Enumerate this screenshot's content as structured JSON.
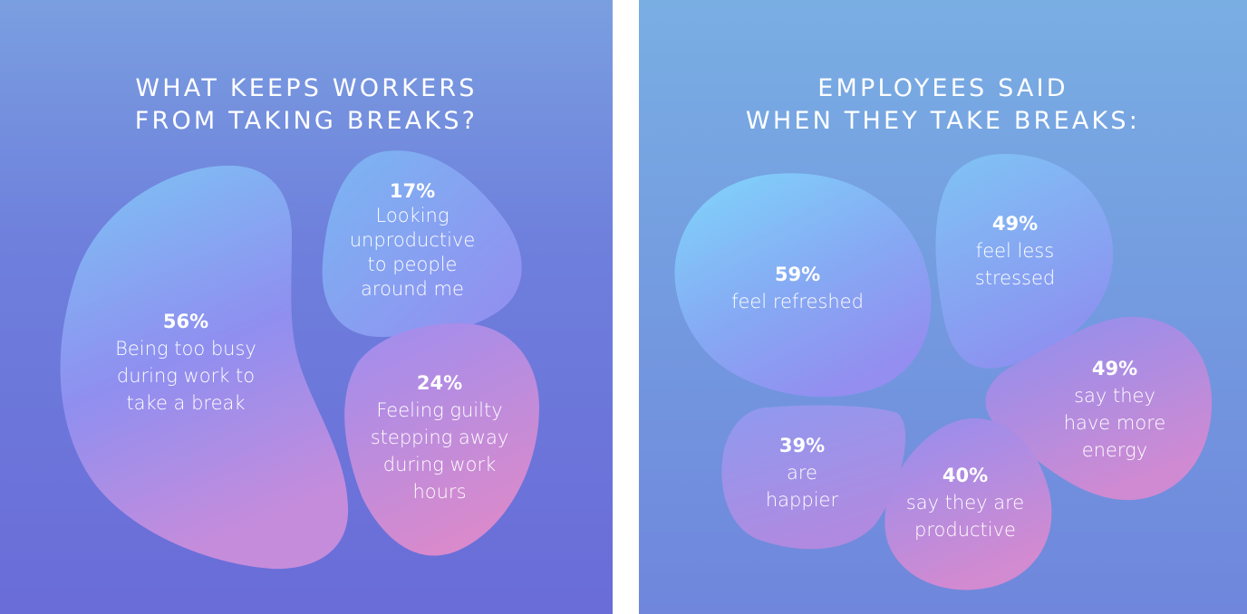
{
  "chart_data": [
    {
      "type": "pie",
      "title_lines": [
        "WHAT KEEPS WORKERS",
        "FROM TAKING BREAKS?"
      ],
      "slices": [
        {
          "value_label": "56%",
          "value": 56,
          "label": "Being too busy during work to take a break",
          "label_lines": [
            "Being too busy",
            "during work to",
            "take a break"
          ]
        },
        {
          "value_label": "17%",
          "value": 17,
          "label": "Looking unproductive to people around me",
          "label_lines": [
            "Looking",
            "unproductive",
            "to people",
            "around me"
          ]
        },
        {
          "value_label": "24%",
          "value": 24,
          "label": "Feeling guilty stepping away during work hours",
          "label_lines": [
            "Feeling guilty",
            "stepping away",
            "during work",
            "hours"
          ]
        }
      ]
    },
    {
      "type": "bar",
      "title_lines": [
        "EMPLOYEES SAID",
        "WHEN THEY TAKE BREAKS:"
      ],
      "categories": [
        "feel refreshed",
        "feel less stressed",
        "say they have more energy",
        "say they are productive",
        "are happier"
      ],
      "values": [
        59,
        49,
        49,
        40,
        39
      ],
      "value_labels": [
        "59%",
        "49%",
        "49%",
        "40%",
        "39%"
      ],
      "label_lines": [
        [
          "feel refreshed"
        ],
        [
          "feel less",
          "stressed"
        ],
        [
          "say they",
          "have more",
          "energy"
        ],
        [
          "say they are",
          "productive"
        ],
        [
          "are",
          "happier"
        ]
      ]
    }
  ],
  "colors": {
    "left_bg_top": "#7a9fe0",
    "left_bg_bottom": "#6a6cd8",
    "right_bg_top": "#79aee3",
    "right_bg_bottom": "#6f86dc",
    "blob_top": "#7cc8f5",
    "blob_mid": "#8f8ef0",
    "blob_bottom": "#d68ad0",
    "text": "#ffffff"
  }
}
